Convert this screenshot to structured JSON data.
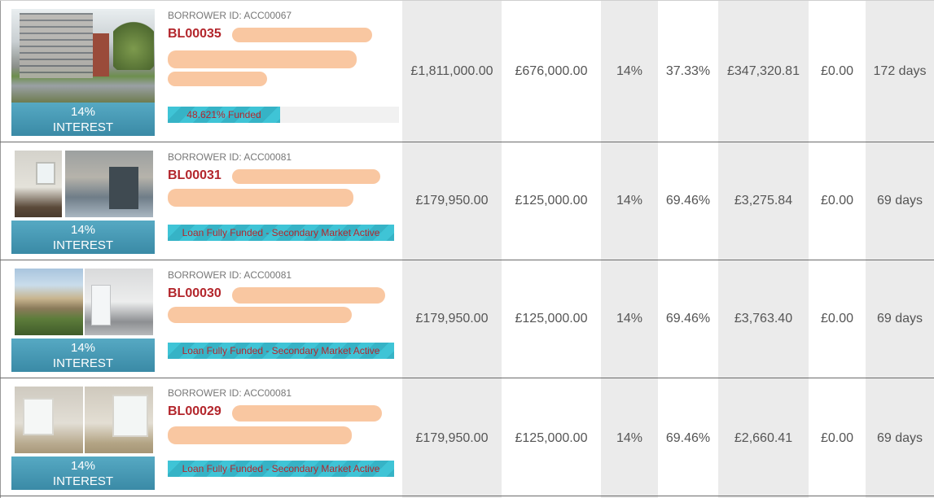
{
  "loans": [
    {
      "borrower_id": "BORROWER ID: ACC00067",
      "ref": "BL00035",
      "interest_rate": "14%",
      "interest_label": "INTEREST",
      "funding_status": "48.621% Funded",
      "funded_fraction": 0.48621,
      "property_value": "£1,811,000.00",
      "loan_amount": "£676,000.00",
      "rate": "14%",
      "ltv": "37.33%",
      "interest_due": "£347,320.81",
      "balance": "£0.00",
      "term": "172 days"
    },
    {
      "borrower_id": "BORROWER ID: ACC00081",
      "ref": "BL00031",
      "interest_rate": "14%",
      "interest_label": "INTEREST",
      "funding_status": "Loan Fully Funded - Secondary Market Active",
      "funded_fraction": 1.0,
      "property_value": "£179,950.00",
      "loan_amount": "£125,000.00",
      "rate": "14%",
      "ltv": "69.46%",
      "interest_due": "£3,275.84",
      "balance": "£0.00",
      "term": "69 days"
    },
    {
      "borrower_id": "BORROWER ID: ACC00081",
      "ref": "BL00030",
      "interest_rate": "14%",
      "interest_label": "INTEREST",
      "funding_status": "Loan Fully Funded - Secondary Market Active",
      "funded_fraction": 1.0,
      "property_value": "£179,950.00",
      "loan_amount": "£125,000.00",
      "rate": "14%",
      "ltv": "69.46%",
      "interest_due": "£3,763.40",
      "balance": "£0.00",
      "term": "69 days"
    },
    {
      "borrower_id": "BORROWER ID: ACC00081",
      "ref": "BL00029",
      "interest_rate": "14%",
      "interest_label": "INTEREST",
      "funding_status": "Loan Fully Funded - Secondary Market Active",
      "funded_fraction": 1.0,
      "property_value": "£179,950.00",
      "loan_amount": "£125,000.00",
      "rate": "14%",
      "ltv": "69.46%",
      "interest_due": "£2,660.41",
      "balance": "£0.00",
      "term": "69 days"
    }
  ],
  "colors": {
    "accent_red": "#b3262c",
    "interest_blue": "#3a8aa6",
    "progress_cyan": "#3fc4d6",
    "redaction": "#f9c7a1"
  }
}
